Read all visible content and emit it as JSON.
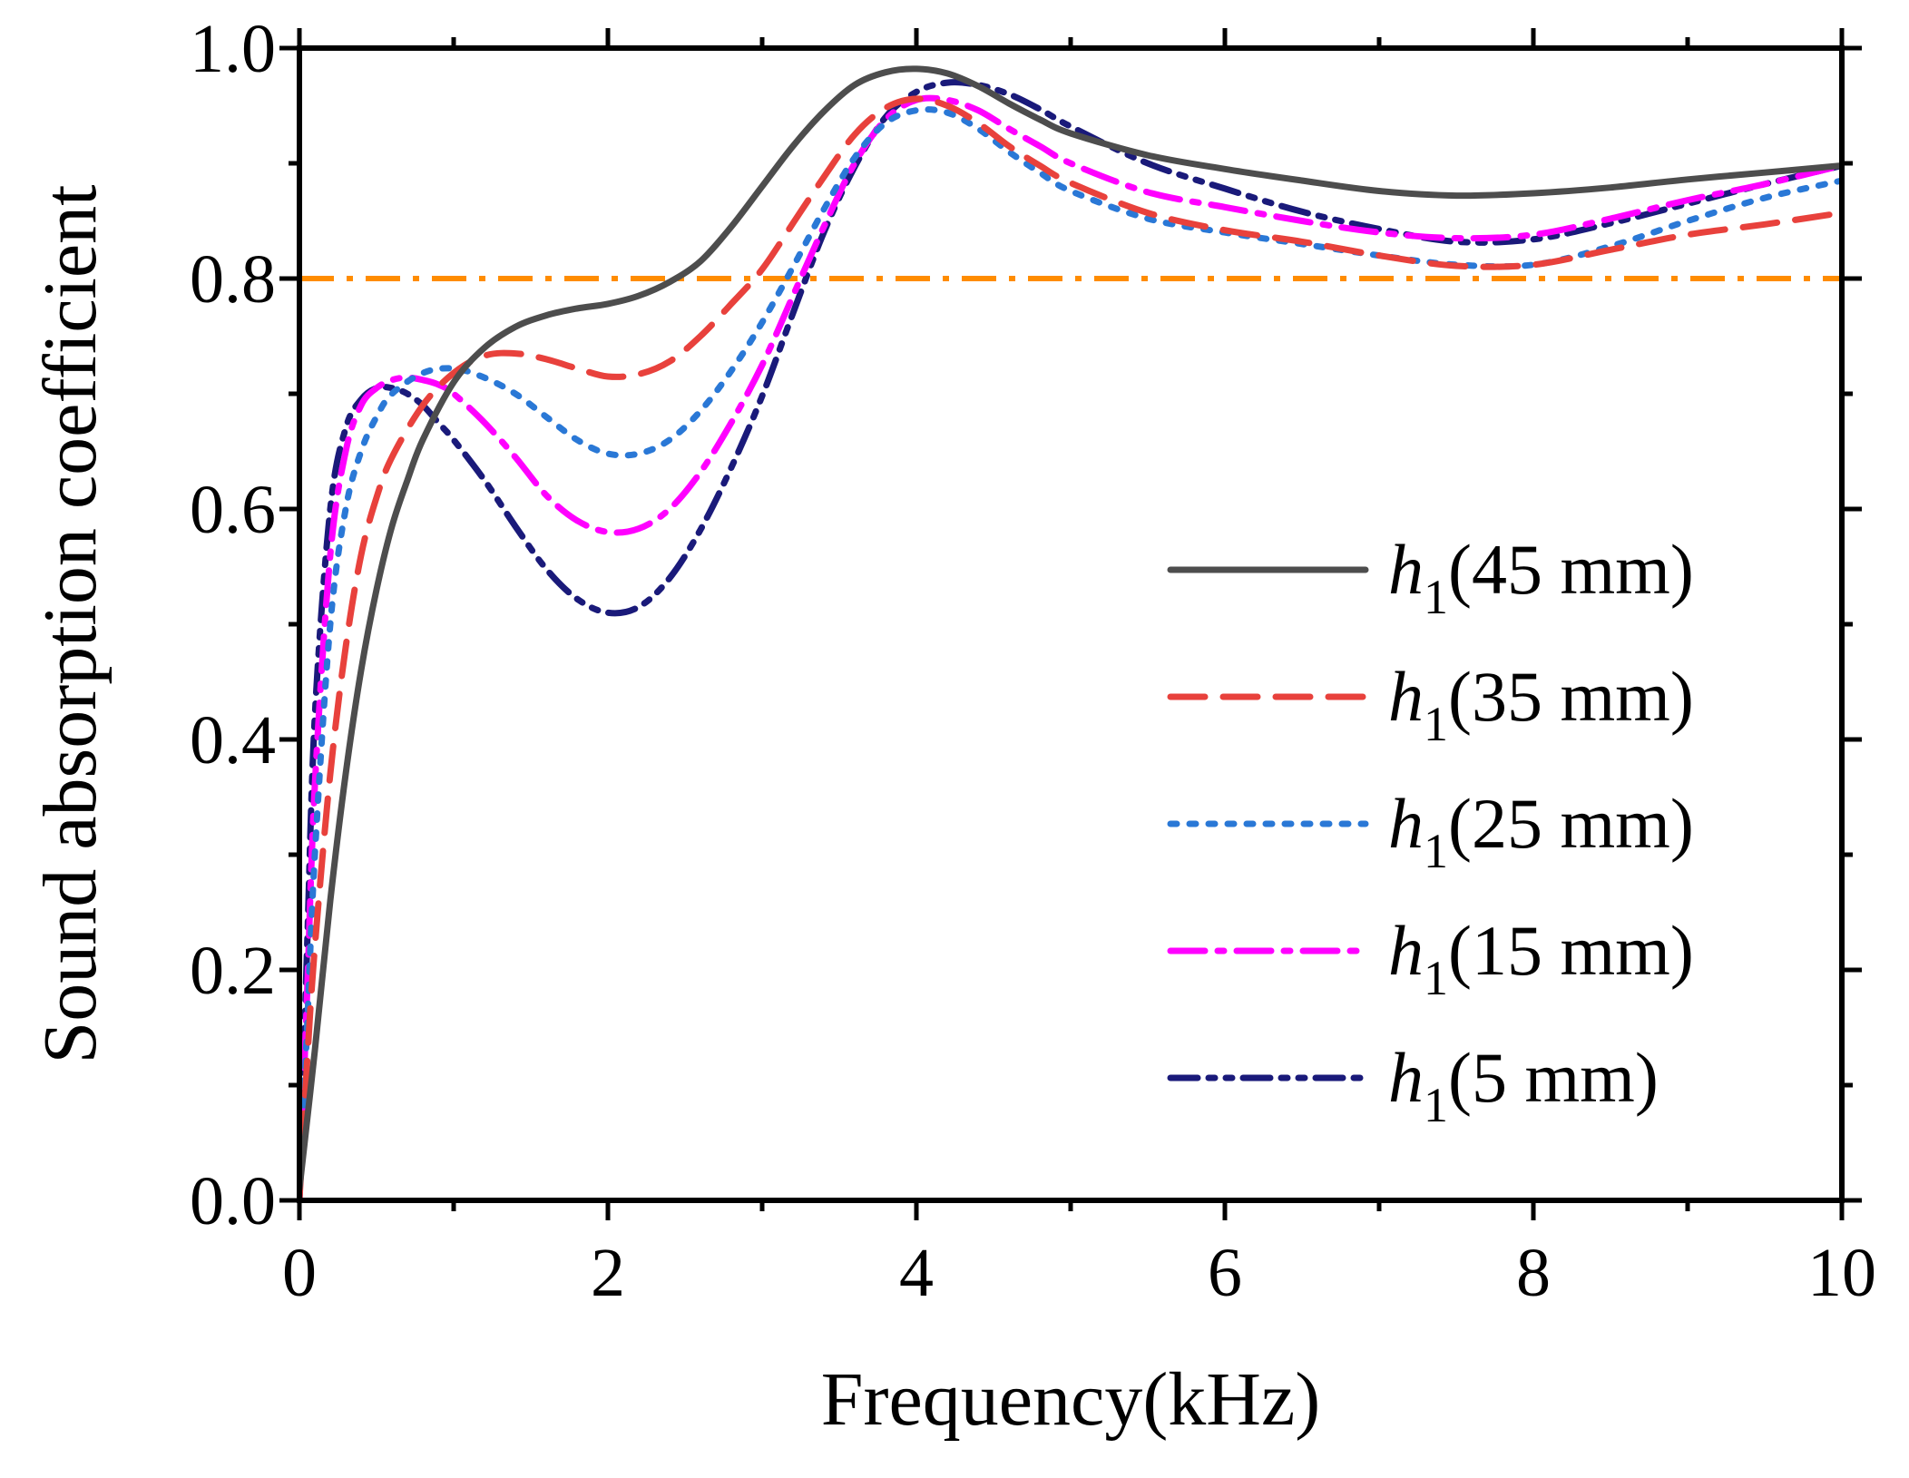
{
  "chart_data": {
    "type": "line",
    "title": "",
    "xlabel": "Frequency(kHz)",
    "ylabel": "Sound absorption coefficient",
    "xlim": [
      0,
      10
    ],
    "ylim": [
      0,
      1.0
    ],
    "x_ticks": [
      0,
      2,
      4,
      6,
      8,
      10
    ],
    "x_tick_labels": [
      "0",
      "2",
      "4",
      "6",
      "8",
      "10"
    ],
    "y_ticks": [
      0.0,
      0.2,
      0.4,
      0.6,
      0.8,
      1.0
    ],
    "y_tick_labels": [
      "0.0",
      "0.2",
      "0.4",
      "0.6",
      "0.8",
      "1.0"
    ],
    "grid": false,
    "legend_position": "right",
    "reference_line": {
      "y": 0.8,
      "color": "#FF8C00",
      "style": "dash-dot"
    },
    "series": [
      {
        "name": "h1(45 mm)",
        "label_main": "h",
        "label_sub": "1",
        "label_rest": "(45 mm)",
        "color": "#4D4D4D",
        "style": "solid",
        "x": [
          0,
          0.1,
          0.2,
          0.3,
          0.4,
          0.5,
          0.6,
          0.7,
          0.8,
          1.0,
          1.2,
          1.4,
          1.6,
          1.8,
          2.0,
          2.2,
          2.4,
          2.6,
          2.8,
          3.0,
          3.2,
          3.4,
          3.6,
          3.8,
          4.0,
          4.2,
          4.4,
          4.6,
          4.8,
          5.0,
          5.5,
          6.0,
          6.5,
          7.0,
          7.5,
          8.0,
          8.5,
          9.0,
          9.5,
          10.0
        ],
        "y": [
          0.01,
          0.13,
          0.26,
          0.37,
          0.46,
          0.53,
          0.585,
          0.625,
          0.66,
          0.71,
          0.74,
          0.758,
          0.768,
          0.774,
          0.778,
          0.785,
          0.797,
          0.815,
          0.845,
          0.88,
          0.915,
          0.945,
          0.968,
          0.979,
          0.982,
          0.978,
          0.967,
          0.952,
          0.938,
          0.926,
          0.907,
          0.895,
          0.885,
          0.876,
          0.872,
          0.874,
          0.879,
          0.886,
          0.892,
          0.898
        ]
      },
      {
        "name": "h1(35 mm)",
        "label_main": "h",
        "label_sub": "1",
        "label_rest": "(35 mm)",
        "color": "#E8413C",
        "style": "dash",
        "x": [
          0,
          0.05,
          0.1,
          0.2,
          0.3,
          0.4,
          0.5,
          0.6,
          0.8,
          1.0,
          1.2,
          1.4,
          1.6,
          1.8,
          2.0,
          2.2,
          2.4,
          2.6,
          2.8,
          3.0,
          3.2,
          3.4,
          3.6,
          3.8,
          4.0,
          4.2,
          4.4,
          4.6,
          4.8,
          5.0,
          5.5,
          6.0,
          6.5,
          7.0,
          7.5,
          8.0,
          8.5,
          9.0,
          9.5,
          10.0
        ],
        "y": [
          0.0,
          0.12,
          0.22,
          0.37,
          0.48,
          0.56,
          0.61,
          0.645,
          0.69,
          0.718,
          0.733,
          0.735,
          0.73,
          0.722,
          0.715,
          0.717,
          0.728,
          0.75,
          0.778,
          0.808,
          0.848,
          0.888,
          0.925,
          0.948,
          0.956,
          0.95,
          0.935,
          0.915,
          0.898,
          0.883,
          0.857,
          0.842,
          0.832,
          0.82,
          0.811,
          0.812,
          0.825,
          0.838,
          0.847,
          0.857
        ]
      },
      {
        "name": "h1(25 mm)",
        "label_main": "h",
        "label_sub": "1",
        "label_rest": "(25 mm)",
        "color": "#2A78D6",
        "style": "dot",
        "x": [
          0,
          0.05,
          0.1,
          0.2,
          0.3,
          0.4,
          0.5,
          0.6,
          0.8,
          1.0,
          1.2,
          1.4,
          1.6,
          1.8,
          2.0,
          2.2,
          2.4,
          2.6,
          2.8,
          3.0,
          3.2,
          3.4,
          3.6,
          3.8,
          4.0,
          4.2,
          4.4,
          4.6,
          4.8,
          5.0,
          5.5,
          6.0,
          6.5,
          7.0,
          7.5,
          8.0,
          8.5,
          9.0,
          9.5,
          10.0
        ],
        "y": [
          0.0,
          0.15,
          0.3,
          0.5,
          0.6,
          0.65,
          0.68,
          0.7,
          0.718,
          0.722,
          0.714,
          0.7,
          0.68,
          0.66,
          0.648,
          0.648,
          0.66,
          0.685,
          0.72,
          0.762,
          0.81,
          0.86,
          0.905,
          0.935,
          0.946,
          0.944,
          0.93,
          0.91,
          0.892,
          0.876,
          0.852,
          0.84,
          0.83,
          0.82,
          0.812,
          0.812,
          0.828,
          0.85,
          0.87,
          0.885
        ]
      },
      {
        "name": "h1(15 mm)",
        "label_main": "h",
        "label_sub": "1",
        "label_rest": "(15 mm)",
        "color": "#FF00FF",
        "style": "dash-dot",
        "x": [
          0,
          0.05,
          0.1,
          0.2,
          0.3,
          0.4,
          0.5,
          0.6,
          0.7,
          0.8,
          0.9,
          1.0,
          1.2,
          1.4,
          1.6,
          1.8,
          2.0,
          2.2,
          2.4,
          2.6,
          2.8,
          3.0,
          3.2,
          3.4,
          3.6,
          3.8,
          4.0,
          4.2,
          4.4,
          4.6,
          4.8,
          5.0,
          5.5,
          6.0,
          6.5,
          7.0,
          7.5,
          8.0,
          8.5,
          9.0,
          9.5,
          10.0
        ],
        "y": [
          0.0,
          0.18,
          0.36,
          0.56,
          0.65,
          0.69,
          0.705,
          0.712,
          0.714,
          0.712,
          0.708,
          0.7,
          0.675,
          0.645,
          0.612,
          0.59,
          0.58,
          0.583,
          0.6,
          0.632,
          0.675,
          0.725,
          0.785,
          0.845,
          0.9,
          0.938,
          0.955,
          0.955,
          0.946,
          0.93,
          0.915,
          0.9,
          0.875,
          0.862,
          0.85,
          0.84,
          0.835,
          0.838,
          0.852,
          0.868,
          0.882,
          0.898
        ]
      },
      {
        "name": "h1(5 mm)",
        "label_main": "h",
        "label_sub": "1",
        "label_rest": "(5 mm)",
        "color": "#1A1A7A",
        "style": "dash-dot-dot",
        "x": [
          0,
          0.05,
          0.1,
          0.2,
          0.3,
          0.4,
          0.5,
          0.6,
          0.7,
          0.8,
          0.9,
          1.0,
          1.2,
          1.4,
          1.6,
          1.8,
          2.0,
          2.2,
          2.4,
          2.6,
          2.8,
          3.0,
          3.2,
          3.4,
          3.6,
          3.8,
          4.0,
          4.2,
          4.4,
          4.6,
          4.8,
          5.0,
          5.5,
          6.0,
          6.5,
          7.0,
          7.5,
          8.0,
          8.5,
          9.0,
          9.5,
          10.0
        ],
        "y": [
          0.0,
          0.22,
          0.42,
          0.6,
          0.67,
          0.695,
          0.705,
          0.705,
          0.7,
          0.69,
          0.675,
          0.66,
          0.625,
          0.585,
          0.548,
          0.522,
          0.51,
          0.515,
          0.54,
          0.582,
          0.636,
          0.698,
          0.77,
          0.84,
          0.897,
          0.94,
          0.962,
          0.97,
          0.968,
          0.96,
          0.947,
          0.932,
          0.9,
          0.878,
          0.858,
          0.843,
          0.832,
          0.834,
          0.848,
          0.865,
          0.882,
          0.898
        ]
      }
    ]
  }
}
